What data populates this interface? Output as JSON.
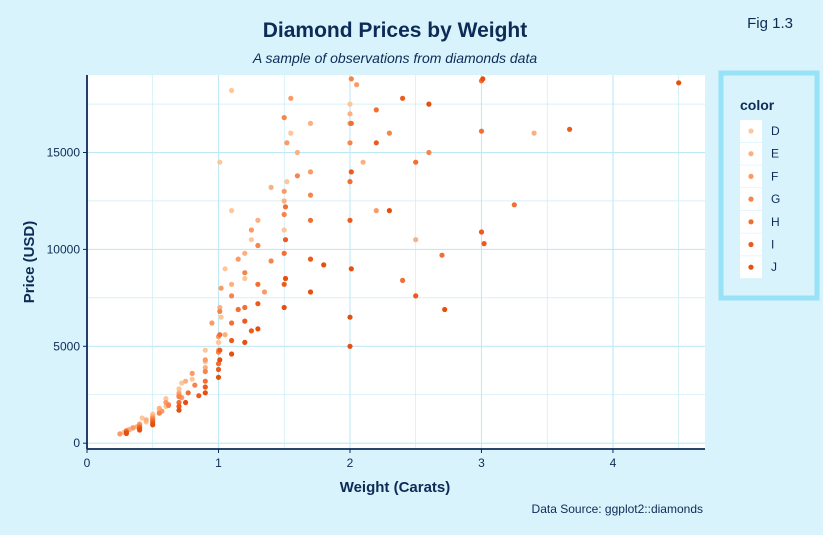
{
  "fig_label": "Fig 1.3",
  "caption": "Data Source: ggplot2::diamonds",
  "colors": {
    "background": "#d8f3fb",
    "panel": "#ffffff",
    "grid": "#bfe9f5",
    "axis": "#0d2b57",
    "legend_border": "#98e2f7"
  },
  "chart_data": {
    "type": "scatter",
    "title": "Diamond Prices by Weight",
    "subtitle": "A sample of observations from diamonds data",
    "xlabel": "Weight (Carats)",
    "ylabel": "Price (USD)",
    "xlim": [
      0,
      4.7
    ],
    "ylim": [
      -300,
      19000
    ],
    "x_ticks": [
      0,
      1,
      2,
      3,
      4
    ],
    "y_ticks": [
      0,
      5000,
      10000,
      15000
    ],
    "x_minor_grid": [
      0.5,
      1.5,
      2.5,
      3.5,
      4.5
    ],
    "y_minor_grid": [
      2500,
      7500,
      12500,
      17500
    ],
    "grid": true,
    "legend": {
      "title": "color",
      "position": "right",
      "items": [
        {
          "label": "D",
          "color": "#fdc79a"
        },
        {
          "label": "E",
          "color": "#fcb07f"
        },
        {
          "label": "F",
          "color": "#fb9a64"
        },
        {
          "label": "G",
          "color": "#f7844a"
        },
        {
          "label": "H",
          "color": "#f26e32"
        },
        {
          "label": "I",
          "color": "#ec5a1d"
        },
        {
          "label": "J",
          "color": "#e5500f"
        }
      ]
    },
    "series": [
      {
        "name": "D",
        "points": [
          [
            0.3,
            650
          ],
          [
            0.35,
            780
          ],
          [
            0.4,
            900
          ],
          [
            0.45,
            1100
          ],
          [
            0.5,
            1500
          ],
          [
            0.55,
            1700
          ],
          [
            0.6,
            1900
          ],
          [
            0.7,
            2800
          ],
          [
            0.72,
            3100
          ],
          [
            0.8,
            3300
          ],
          [
            0.9,
            4200
          ],
          [
            1.0,
            5200
          ],
          [
            1.02,
            6500
          ],
          [
            1.05,
            9000
          ],
          [
            1.1,
            12000
          ],
          [
            1.2,
            8500
          ],
          [
            1.25,
            10500
          ],
          [
            1.5,
            11000
          ],
          [
            1.52,
            13500
          ],
          [
            1.55,
            16000
          ],
          [
            2.0,
            17500
          ],
          [
            0.9,
            4800
          ],
          [
            1.1,
            18200
          ],
          [
            1.01,
            14500
          ],
          [
            0.6,
            2300
          ],
          [
            0.42,
            1300
          ],
          [
            0.33,
            720
          ],
          [
            0.28,
            560
          ]
        ]
      },
      {
        "name": "E",
        "points": [
          [
            0.3,
            600
          ],
          [
            0.32,
            700
          ],
          [
            0.4,
            1000
          ],
          [
            0.5,
            1400
          ],
          [
            0.55,
            1800
          ],
          [
            0.7,
            2600
          ],
          [
            0.75,
            3200
          ],
          [
            0.9,
            3900
          ],
          [
            1.0,
            4800
          ],
          [
            1.01,
            7000
          ],
          [
            1.1,
            8200
          ],
          [
            1.2,
            9800
          ],
          [
            1.3,
            11500
          ],
          [
            1.5,
            12500
          ],
          [
            1.6,
            15000
          ],
          [
            1.7,
            16500
          ],
          [
            2.0,
            17000
          ],
          [
            2.1,
            14500
          ],
          [
            3.4,
            16000
          ],
          [
            2.5,
            10500
          ],
          [
            0.45,
            1200
          ],
          [
            0.62,
            2000
          ],
          [
            1.05,
            5600
          ],
          [
            1.4,
            13200
          ],
          [
            0.38,
            850
          ]
        ]
      },
      {
        "name": "F",
        "points": [
          [
            0.25,
            480
          ],
          [
            0.35,
            800
          ],
          [
            0.4,
            950
          ],
          [
            0.5,
            1300
          ],
          [
            0.6,
            2100
          ],
          [
            0.7,
            2500
          ],
          [
            0.8,
            3600
          ],
          [
            0.9,
            4300
          ],
          [
            1.0,
            5500
          ],
          [
            1.02,
            8000
          ],
          [
            1.15,
            9500
          ],
          [
            1.25,
            11000
          ],
          [
            1.5,
            13000
          ],
          [
            1.52,
            15500
          ],
          [
            1.7,
            14000
          ],
          [
            2.0,
            16500
          ],
          [
            2.2,
            12000
          ],
          [
            1.55,
            17800
          ],
          [
            2.05,
            18500
          ],
          [
            0.57,
            1650
          ],
          [
            0.72,
            2350
          ],
          [
            1.35,
            7800
          ],
          [
            0.95,
            6200
          ]
        ]
      },
      {
        "name": "G",
        "points": [
          [
            0.3,
            640
          ],
          [
            0.4,
            880
          ],
          [
            0.5,
            1250
          ],
          [
            0.55,
            1550
          ],
          [
            0.7,
            2400
          ],
          [
            0.9,
            3700
          ],
          [
            1.0,
            4700
          ],
          [
            1.01,
            6800
          ],
          [
            1.1,
            7600
          ],
          [
            1.2,
            8800
          ],
          [
            1.3,
            10200
          ],
          [
            1.5,
            11800
          ],
          [
            1.6,
            13800
          ],
          [
            1.5,
            16800
          ],
          [
            2.0,
            15500
          ],
          [
            2.3,
            16000
          ],
          [
            2.6,
            15000
          ],
          [
            2.01,
            18800
          ],
          [
            0.62,
            1950
          ],
          [
            0.82,
            3000
          ],
          [
            1.4,
            9400
          ],
          [
            1.7,
            12800
          ]
        ]
      },
      {
        "name": "H",
        "points": [
          [
            0.3,
            590
          ],
          [
            0.4,
            820
          ],
          [
            0.5,
            1150
          ],
          [
            0.7,
            2100
          ],
          [
            0.9,
            3200
          ],
          [
            1.0,
            4100
          ],
          [
            1.01,
            5600
          ],
          [
            1.1,
            6200
          ],
          [
            1.2,
            7000
          ],
          [
            1.3,
            8200
          ],
          [
            1.5,
            9800
          ],
          [
            1.51,
            12200
          ],
          [
            1.7,
            11500
          ],
          [
            2.0,
            13500
          ],
          [
            2.01,
            16500
          ],
          [
            2.2,
            17200
          ],
          [
            2.5,
            14500
          ],
          [
            3.0,
            18700
          ],
          [
            3.0,
            16100
          ],
          [
            2.7,
            9700
          ],
          [
            3.25,
            12300
          ],
          [
            2.4,
            8400
          ],
          [
            0.77,
            2600
          ],
          [
            1.15,
            6900
          ]
        ]
      },
      {
        "name": "I",
        "points": [
          [
            0.3,
            560
          ],
          [
            0.4,
            760
          ],
          [
            0.5,
            1050
          ],
          [
            0.7,
            1900
          ],
          [
            0.9,
            2900
          ],
          [
            1.0,
            3800
          ],
          [
            1.01,
            4800
          ],
          [
            1.1,
            5300
          ],
          [
            1.2,
            6300
          ],
          [
            1.3,
            7200
          ],
          [
            1.5,
            8200
          ],
          [
            1.51,
            10500
          ],
          [
            1.7,
            9500
          ],
          [
            2.0,
            11500
          ],
          [
            2.01,
            14000
          ],
          [
            2.2,
            15500
          ],
          [
            2.4,
            17800
          ],
          [
            3.0,
            10900
          ],
          [
            3.02,
            10300
          ],
          [
            3.67,
            16200
          ],
          [
            2.5,
            7600
          ],
          [
            0.85,
            2450
          ],
          [
            1.25,
            5800
          ]
        ]
      },
      {
        "name": "J",
        "points": [
          [
            0.3,
            500
          ],
          [
            0.4,
            680
          ],
          [
            0.5,
            950
          ],
          [
            0.7,
            1700
          ],
          [
            0.9,
            2600
          ],
          [
            1.0,
            3400
          ],
          [
            1.01,
            4300
          ],
          [
            1.1,
            4600
          ],
          [
            1.2,
            5200
          ],
          [
            1.3,
            5900
          ],
          [
            1.5,
            7000
          ],
          [
            1.51,
            8500
          ],
          [
            1.7,
            7800
          ],
          [
            2.0,
            5000
          ],
          [
            2.0,
            6500
          ],
          [
            2.01,
            9000
          ],
          [
            2.3,
            12000
          ],
          [
            2.6,
            17500
          ],
          [
            4.5,
            18600
          ],
          [
            2.72,
            6900
          ],
          [
            3.01,
            18800
          ],
          [
            1.8,
            9200
          ],
          [
            0.75,
            2100
          ]
        ]
      }
    ]
  }
}
